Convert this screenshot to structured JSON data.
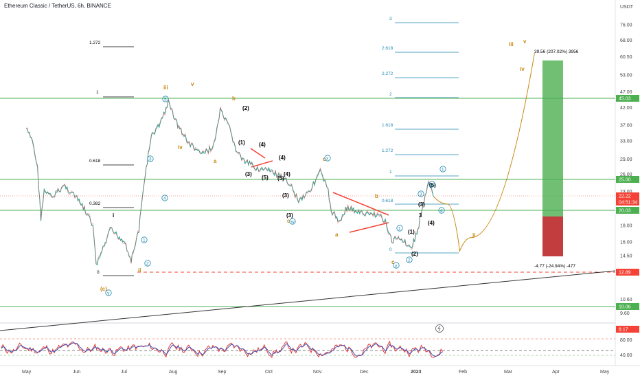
{
  "header": {
    "title": "Ethereum Classic / TetherUS, 6h, BINANCE",
    "currency": "USDT"
  },
  "colors": {
    "up": "#26a69a",
    "down": "#ef5350",
    "accent_green": "#4caf50",
    "accent_red": "#f44336",
    "wave_orange": "#c8860f",
    "wave_teal": "#1e88b0",
    "osc_red": "#e53935",
    "osc_blue": "#3f51b5"
  },
  "chart_data": {
    "type": "line",
    "price_axis": {
      "ticks": [
        "76.00",
        "68.00",
        "60.50",
        "53.00",
        "47.00",
        "42.00",
        "37.00",
        "33.00",
        "29.00",
        "26.00",
        "23.00",
        "18.00",
        "16.00",
        "14.50",
        "10.60",
        "9.60"
      ]
    },
    "price_badges": [
      {
        "value": "45.03",
        "color": "#4caf50"
      },
      {
        "value": "25.00",
        "color": "#4caf50"
      },
      {
        "value": "22.22",
        "color": "#f44336"
      },
      {
        "value": "04:51:34",
        "color": "#f44336"
      },
      {
        "value": "20.03",
        "color": "#4caf50"
      },
      {
        "value": "12.89",
        "color": "#f44336"
      },
      {
        "value": "10.06",
        "color": "#4caf50"
      },
      {
        "value": "8.17",
        "color": "#f44336"
      }
    ],
    "time_axis": [
      "May",
      "Jun",
      "Jul",
      "Aug",
      "Sep",
      "Oct",
      "Nov",
      "Dec",
      "2023",
      "Feb",
      "Mar",
      "Apr",
      "May"
    ],
    "price_path": [
      [
        "May 1",
        36
      ],
      [
        "May 5",
        33
      ],
      [
        "May 8",
        27
      ],
      [
        "May 10",
        19
      ],
      [
        "May 12",
        23
      ],
      [
        "May 17",
        22
      ],
      [
        "May 24",
        24
      ],
      [
        "May 30",
        22.5
      ],
      [
        "Jun 5",
        20.5
      ],
      [
        "Jun 11",
        18
      ],
      [
        "Jun 13",
        13.5
      ],
      [
        "Jun 18",
        15.5
      ],
      [
        "Jun 22",
        17.5
      ],
      [
        "Jul 1",
        16
      ],
      [
        "Jul 5",
        14
      ],
      [
        "Jul 10",
        17.5
      ],
      [
        "Jul 14",
        26
      ],
      [
        "Jul 18",
        34
      ],
      [
        "Jul 23",
        37
      ],
      [
        "Jul 29",
        43.5
      ],
      [
        "Aug 4",
        37
      ],
      [
        "Aug 10",
        33
      ],
      [
        "Aug 14",
        31.5
      ],
      [
        "Aug 20",
        30
      ],
      [
        "Aug 27",
        32
      ],
      [
        "Aug 31",
        41
      ],
      [
        "Sep 6",
        36
      ],
      [
        "Sep 10",
        31
      ],
      [
        "Sep 15",
        28.5
      ],
      [
        "Sep 25",
        27
      ],
      [
        "Oct 3",
        26.5
      ],
      [
        "Oct 10",
        25
      ],
      [
        "Oct 14",
        24.5
      ],
      [
        "Oct 20",
        21.5
      ],
      [
        "Oct 28",
        23.5
      ],
      [
        "Nov 3",
        26.5
      ],
      [
        "Nov 8",
        23
      ],
      [
        "Nov 10",
        20
      ],
      [
        "Nov 15",
        18.5
      ],
      [
        "Nov 20",
        20.5
      ],
      [
        "Dec 1",
        19.5
      ],
      [
        "Dec 10",
        19.5
      ],
      [
        "Dec 14",
        18.5
      ],
      [
        "Dec 18",
        16
      ],
      [
        "Dec 22",
        16.7
      ],
      [
        "Dec 30",
        15.3
      ],
      [
        "Jan 3",
        17.5
      ],
      [
        "Jan 7",
        21.5
      ],
      [
        "Jan 10",
        24.5
      ],
      [
        "Jan 13",
        22.2
      ]
    ],
    "projection_path": [
      [
        "Jan 13",
        22.2
      ],
      [
        "Jan 22",
        21
      ],
      [
        "Jan 30",
        15
      ],
      [
        "Feb 6",
        16.5
      ],
      [
        "Mar 18",
        62
      ]
    ],
    "horizontal_levels": [
      45.03,
      25.0,
      20.03,
      10.06,
      12.89
    ],
    "fib_extension_labels": [
      "3",
      "2.618",
      "2.272",
      "2",
      "1.618",
      "1.272",
      "1",
      "0.618",
      "0"
    ],
    "fib_retracement_labels": [
      "1.272",
      "1",
      "0.618",
      "0.382",
      "0"
    ],
    "position_box": {
      "target_label": "39.56 (207.02%) 3956",
      "stop_label": "-4.77 (-24.94%) -477"
    },
    "oscillator": {
      "ticks": [
        "80.00",
        "40.00"
      ],
      "levels": [
        80,
        50,
        40
      ]
    }
  },
  "wave_labels": {
    "orange": [
      "(c)",
      "ii",
      "iii",
      "iv",
      "v",
      "a",
      "b",
      "c",
      "c",
      "a",
      "b",
      "c",
      "ii",
      "iii",
      "iv",
      "v"
    ],
    "black": [
      "0",
      "1",
      "0.618",
      "0.382",
      "1.272",
      "i",
      "(1)",
      "(2)",
      "(3)",
      "(4)",
      "(5)",
      "(3)",
      "(4)",
      "(5)",
      "(4)",
      "(3)",
      "(1)",
      "(2)",
      "(3)",
      "(4)",
      "(5)",
      "3"
    ],
    "teal_circled": [
      "1",
      "2",
      "3",
      "4",
      "5",
      "y",
      "w",
      "x",
      "y",
      "1",
      "2",
      "3",
      "4",
      "5",
      "1"
    ]
  }
}
